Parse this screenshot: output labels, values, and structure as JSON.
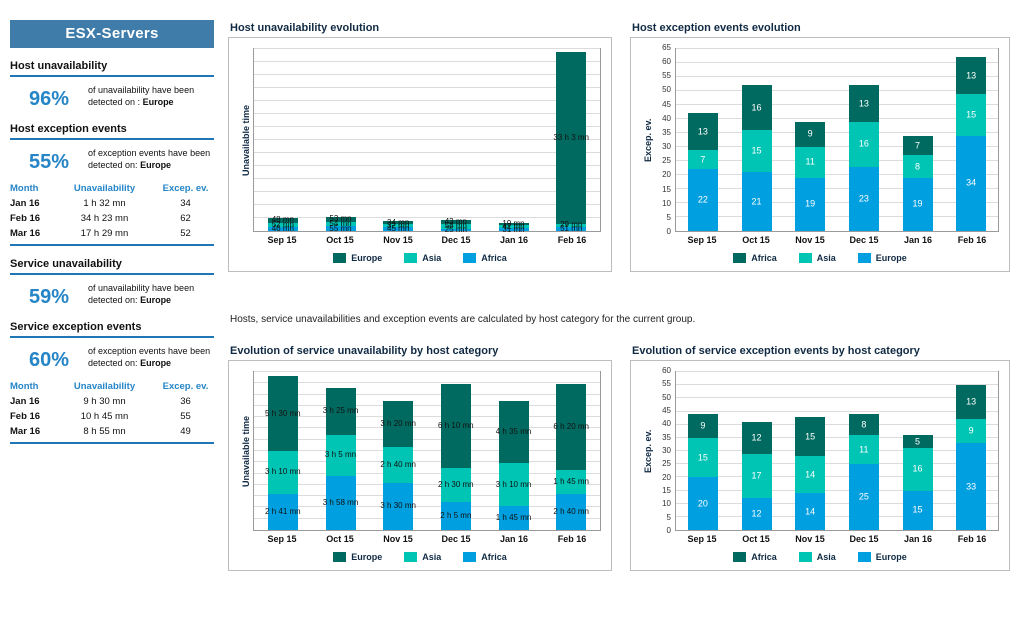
{
  "colors": {
    "header_bg": "#3f7ca9",
    "accent_blue": "#2585c7",
    "line_blue": "#2076b4",
    "title_dark": "#102a43",
    "europe": "#006a60",
    "asia": "#00c4b4",
    "africa": "#009fe0"
  },
  "sidebar": {
    "title": "ESX-Servers",
    "host_unavailability": {
      "heading": "Host unavailability",
      "percent": "96%",
      "description": "of unavailability have been detected on :",
      "description_bold": "Europe"
    },
    "host_exception": {
      "heading": "Host exception events",
      "percent": "55%",
      "description": "of exception events have been detected on:",
      "description_bold": "Europe"
    },
    "host_table": {
      "headers": [
        "Month",
        "Unavailability",
        "Excep. ev."
      ],
      "rows": [
        [
          "Jan 16",
          "1 h 32 mn",
          "34"
        ],
        [
          "Feb 16",
          "34 h 23 mn",
          "62"
        ],
        [
          "Mar 16",
          "17 h 29 mn",
          "52"
        ]
      ]
    },
    "service_unavailability": {
      "heading": "Service unavailability",
      "percent": "59%",
      "description": "of unavailability have been detected on:",
      "description_bold": "Europe"
    },
    "service_exception": {
      "heading": "Service exception events",
      "percent": "60%",
      "description": "of exception events have been detected on:",
      "description_bold": "Europe"
    },
    "service_table": {
      "headers": [
        "Month",
        "Unavailability",
        "Excep. ev."
      ],
      "rows": [
        [
          "Jan 16",
          "9 h 30 mn",
          "36"
        ],
        [
          "Feb 16",
          "10 h 45 mn",
          "55"
        ],
        [
          "Mar 16",
          "8 h 55 mn",
          "49"
        ]
      ]
    }
  },
  "note": "Hosts, service unavailabilities and exception events are calculated by host category for the current group.",
  "chart_data": [
    {
      "id": "host-unavailability-evolution",
      "type": "bar",
      "stacked": true,
      "title": "Host unavailability evolution",
      "ylabel": "Unavailable time",
      "categories": [
        "Sep 15",
        "Oct 15",
        "Nov 15",
        "Dec 15",
        "Jan 16",
        "Feb 16"
      ],
      "value_unit": "minutes",
      "ymax": 2100,
      "grid_step": 150,
      "label_style": "dark",
      "legend_position": "bottom",
      "series": [
        {
          "name": "Africa",
          "color": "#009fe0",
          "values": [
            46,
            55,
            45,
            25,
            31,
            51
          ],
          "labels": [
            "46 mn",
            "55 mn",
            "45 mn",
            "25 mn",
            "31 mn",
            "51 mn"
          ]
        },
        {
          "name": "Asia",
          "color": "#00c4b4",
          "values": [
            52,
            54,
            32,
            58,
            42,
            29
          ],
          "labels": [
            "52 mn",
            "54 mn",
            "32 mn",
            "58 mn",
            "42 mn",
            "29 mn"
          ]
        },
        {
          "name": "Europe",
          "color": "#006a60",
          "values": [
            48,
            53,
            34,
            43,
            19,
            1983
          ],
          "labels": [
            "48 mn",
            "53 mn",
            "34 mn",
            "43 mn",
            "19 mn",
            "33 h 3 mn"
          ]
        }
      ],
      "legend": [
        "Europe",
        "Asia",
        "Africa"
      ]
    },
    {
      "id": "host-exception-events-evolution",
      "type": "bar",
      "stacked": true,
      "title": "Host exception events evolution",
      "ylabel": "Excep. ev.",
      "categories": [
        "Sep 15",
        "Oct 15",
        "Nov 15",
        "Dec 15",
        "Jan 16",
        "Feb 16"
      ],
      "ymax": 65,
      "ytick_step": 5,
      "label_style": "light",
      "legend_position": "bottom",
      "series": [
        {
          "name": "Europe",
          "color": "#009fe0",
          "values": [
            22,
            21,
            19,
            23,
            19,
            34
          ]
        },
        {
          "name": "Asia",
          "color": "#00c4b4",
          "values": [
            7,
            15,
            11,
            16,
            8,
            15
          ]
        },
        {
          "name": "Africa",
          "color": "#006a60",
          "values": [
            13,
            16,
            9,
            13,
            7,
            13
          ]
        }
      ],
      "legend": [
        "Africa",
        "Asia",
        "Europe"
      ]
    },
    {
      "id": "service-unavailability-by-category",
      "type": "bar",
      "stacked": true,
      "title": "Evolution of service unavailability by host category",
      "ylabel": "Unavailable time",
      "categories": [
        "Sep 15",
        "Oct 15",
        "Nov 15",
        "Dec 15",
        "Jan 16",
        "Feb 16"
      ],
      "value_unit": "minutes",
      "ymax": 700,
      "grid_step": 50,
      "label_style": "dark",
      "legend_position": "bottom",
      "series": [
        {
          "name": "Africa",
          "color": "#009fe0",
          "values": [
            161,
            238,
            210,
            125,
            105,
            160
          ],
          "labels": [
            "2 h 41 mn",
            "3 h 58 mn",
            "3 h 30 mn",
            "2 h 5 mn",
            "1 h 45 mn",
            "2 h 40 mn"
          ]
        },
        {
          "name": "Asia",
          "color": "#00c4b4",
          "values": [
            190,
            185,
            160,
            150,
            190,
            105
          ],
          "labels": [
            "3 h 10 mn",
            "3 h 5 mn",
            "2 h 40 mn",
            "2 h 30 mn",
            "3 h 10 mn",
            "1 h 45 mn"
          ]
        },
        {
          "name": "Europe",
          "color": "#006a60",
          "values": [
            330,
            205,
            200,
            370,
            275,
            380
          ],
          "labels": [
            "5 h 30 mn",
            "3 h 25 mn",
            "3 h 20 mn",
            "6 h 10 mn",
            "4 h 35 mn",
            "6 h 20 mn"
          ]
        }
      ],
      "legend": [
        "Europe",
        "Asia",
        "Africa"
      ]
    },
    {
      "id": "service-exception-events-by-category",
      "type": "bar",
      "stacked": true,
      "title": "Evolution of service exception events by host category",
      "ylabel": "Excep. ev.",
      "categories": [
        "Sep 15",
        "Oct 15",
        "Nov 15",
        "Dec 15",
        "Jan 16",
        "Feb 16"
      ],
      "ymax": 60,
      "ytick_step": 5,
      "label_style": "light",
      "legend_position": "bottom",
      "series": [
        {
          "name": "Europe",
          "color": "#009fe0",
          "values": [
            20,
            12,
            14,
            25,
            15,
            33
          ]
        },
        {
          "name": "Asia",
          "color": "#00c4b4",
          "values": [
            15,
            17,
            14,
            11,
            16,
            9
          ]
        },
        {
          "name": "Africa",
          "color": "#006a60",
          "values": [
            9,
            12,
            15,
            8,
            5,
            13
          ]
        }
      ],
      "legend": [
        "Africa",
        "Asia",
        "Europe"
      ]
    }
  ]
}
